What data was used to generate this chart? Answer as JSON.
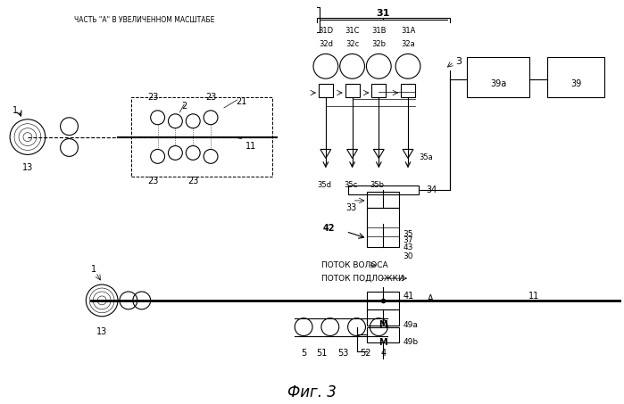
{
  "title": "Фиг. 3",
  "bg_color": "#ffffff",
  "fig_width": 6.99,
  "fig_height": 4.53,
  "dpi": 100,
  "zoom_label": "ЧАСТЬ \"А\" В УВЕЛИЧЕННОМ МАСШТАБЕ",
  "labels": {
    "1_top": "1",
    "13_top": "13",
    "23a": "23",
    "2": "2",
    "23b": "23",
    "21": "21",
    "11_top": "11",
    "23c": "23",
    "23d": "23",
    "31": "31",
    "31D": "31D",
    "31C": "31C",
    "31B": "31B",
    "31A": "31A",
    "32d": "32d",
    "32c": "32c",
    "32b": "32b",
    "32a": "32a",
    "3": "3",
    "39a": "39a",
    "39": "39",
    "35a": "35a",
    "35b": "35b",
    "35c": "35c",
    "35d": "35d",
    "34": "34",
    "33": "33",
    "42": "42",
    "35": "35",
    "37": "37",
    "43": "43",
    "30": "30",
    "hair_flow": "ПОТОК ВОЛОСА",
    "sub_flow": "ПОТОК ПОДЛОЖКИ",
    "1_bot": "1",
    "13_bot": "13",
    "11_bot": "11",
    "4": "4",
    "5": "5",
    "41": "41",
    "A": "A",
    "49a": "49a",
    "49b": "49b",
    "51": "51",
    "53": "53",
    "52": "52"
  }
}
